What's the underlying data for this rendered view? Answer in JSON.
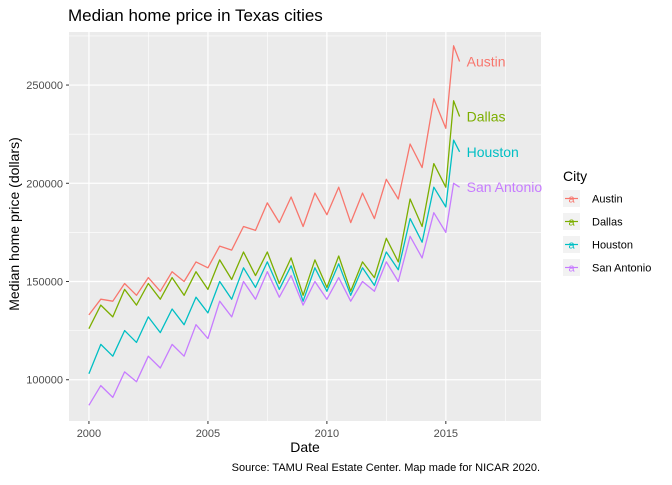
{
  "chart_data": {
    "type": "line",
    "title": "Median home price in Texas cities",
    "xlabel": "Date",
    "ylabel": "Median home price (dollars)",
    "caption": "Source: TAMU Real Estate Center. Map made for NICAR 2020.",
    "xlim": [
      "1999-03-01",
      "2019-01-01"
    ],
    "ylim": [
      79000,
      277000
    ],
    "x_ticks": [
      {
        "value": "2000-01-01",
        "label": "2000"
      },
      {
        "value": "2005-01-01",
        "label": "2005"
      },
      {
        "value": "2010-01-01",
        "label": "2010"
      },
      {
        "value": "2015-01-01",
        "label": "2015"
      }
    ],
    "y_ticks": [
      {
        "value": 100000,
        "label": "100000"
      },
      {
        "value": 150000,
        "label": "150000"
      },
      {
        "value": 200000,
        "label": "200000"
      },
      {
        "value": 250000,
        "label": "250000"
      }
    ],
    "grid": true,
    "legend": {
      "title": "City",
      "position": "right",
      "glyph": "a"
    },
    "series": [
      {
        "name": "Austin",
        "color": "#F8766D",
        "points": [
          [
            "2000-01-01",
            133000
          ],
          [
            "2000-07-01",
            141000
          ],
          [
            "2001-01-01",
            140000
          ],
          [
            "2001-07-01",
            149000
          ],
          [
            "2002-01-01",
            143000
          ],
          [
            "2002-07-01",
            152000
          ],
          [
            "2003-01-01",
            145000
          ],
          [
            "2003-07-01",
            155000
          ],
          [
            "2004-01-01",
            150000
          ],
          [
            "2004-07-01",
            160000
          ],
          [
            "2005-01-01",
            157000
          ],
          [
            "2005-07-01",
            168000
          ],
          [
            "2006-01-01",
            166000
          ],
          [
            "2006-07-01",
            178000
          ],
          [
            "2007-01-01",
            176000
          ],
          [
            "2007-07-01",
            190000
          ],
          [
            "2008-01-01",
            180000
          ],
          [
            "2008-07-01",
            193000
          ],
          [
            "2009-01-01",
            178000
          ],
          [
            "2009-07-01",
            195000
          ],
          [
            "2010-01-01",
            184000
          ],
          [
            "2010-07-01",
            198000
          ],
          [
            "2011-01-01",
            180000
          ],
          [
            "2011-07-01",
            195000
          ],
          [
            "2012-01-01",
            182000
          ],
          [
            "2012-07-01",
            202000
          ],
          [
            "2013-01-01",
            192000
          ],
          [
            "2013-07-01",
            220000
          ],
          [
            "2014-01-01",
            208000
          ],
          [
            "2014-07-01",
            243000
          ],
          [
            "2015-01-01",
            228000
          ],
          [
            "2015-05-01",
            270000
          ],
          [
            "2015-08-01",
            262000
          ]
        ]
      },
      {
        "name": "Dallas",
        "color": "#7CAE00",
        "points": [
          [
            "2000-01-01",
            126000
          ],
          [
            "2000-07-01",
            138000
          ],
          [
            "2001-01-01",
            132000
          ],
          [
            "2001-07-01",
            146000
          ],
          [
            "2002-01-01",
            138000
          ],
          [
            "2002-07-01",
            149000
          ],
          [
            "2003-01-01",
            141000
          ],
          [
            "2003-07-01",
            152000
          ],
          [
            "2004-01-01",
            143000
          ],
          [
            "2004-07-01",
            155000
          ],
          [
            "2005-01-01",
            146000
          ],
          [
            "2005-07-01",
            161000
          ],
          [
            "2006-01-01",
            151000
          ],
          [
            "2006-07-01",
            165000
          ],
          [
            "2007-01-01",
            153000
          ],
          [
            "2007-07-01",
            165000
          ],
          [
            "2008-01-01",
            149000
          ],
          [
            "2008-07-01",
            162000
          ],
          [
            "2009-01-01",
            143000
          ],
          [
            "2009-07-01",
            161000
          ],
          [
            "2010-01-01",
            147000
          ],
          [
            "2010-07-01",
            163000
          ],
          [
            "2011-01-01",
            145000
          ],
          [
            "2011-07-01",
            160000
          ],
          [
            "2012-01-01",
            152000
          ],
          [
            "2012-07-01",
            172000
          ],
          [
            "2013-01-01",
            160000
          ],
          [
            "2013-07-01",
            192000
          ],
          [
            "2014-01-01",
            178000
          ],
          [
            "2014-07-01",
            210000
          ],
          [
            "2015-01-01",
            198000
          ],
          [
            "2015-05-01",
            242000
          ],
          [
            "2015-08-01",
            234000
          ]
        ]
      },
      {
        "name": "Houston",
        "color": "#00BFC4",
        "points": [
          [
            "2000-01-01",
            103000
          ],
          [
            "2000-07-01",
            118000
          ],
          [
            "2001-01-01",
            112000
          ],
          [
            "2001-07-01",
            125000
          ],
          [
            "2002-01-01",
            119000
          ],
          [
            "2002-07-01",
            132000
          ],
          [
            "2003-01-01",
            124000
          ],
          [
            "2003-07-01",
            136000
          ],
          [
            "2004-01-01",
            128000
          ],
          [
            "2004-07-01",
            142000
          ],
          [
            "2005-01-01",
            134000
          ],
          [
            "2005-07-01",
            150000
          ],
          [
            "2006-01-01",
            141000
          ],
          [
            "2006-07-01",
            157000
          ],
          [
            "2007-01-01",
            147000
          ],
          [
            "2007-07-01",
            160000
          ],
          [
            "2008-01-01",
            146000
          ],
          [
            "2008-07-01",
            158000
          ],
          [
            "2009-01-01",
            140000
          ],
          [
            "2009-07-01",
            157000
          ],
          [
            "2010-01-01",
            145000
          ],
          [
            "2010-07-01",
            159000
          ],
          [
            "2011-01-01",
            143000
          ],
          [
            "2011-07-01",
            157000
          ],
          [
            "2012-01-01",
            148000
          ],
          [
            "2012-07-01",
            165000
          ],
          [
            "2013-01-01",
            156000
          ],
          [
            "2013-07-01",
            182000
          ],
          [
            "2014-01-01",
            170000
          ],
          [
            "2014-07-01",
            198000
          ],
          [
            "2015-01-01",
            188000
          ],
          [
            "2015-05-01",
            222000
          ],
          [
            "2015-08-01",
            216000
          ]
        ]
      },
      {
        "name": "San Antonio",
        "color": "#C77CFF",
        "points": [
          [
            "2000-01-01",
            87000
          ],
          [
            "2000-07-01",
            97000
          ],
          [
            "2001-01-01",
            91000
          ],
          [
            "2001-07-01",
            104000
          ],
          [
            "2002-01-01",
            99000
          ],
          [
            "2002-07-01",
            112000
          ],
          [
            "2003-01-01",
            106000
          ],
          [
            "2003-07-01",
            118000
          ],
          [
            "2004-01-01",
            112000
          ],
          [
            "2004-07-01",
            128000
          ],
          [
            "2005-01-01",
            121000
          ],
          [
            "2005-07-01",
            140000
          ],
          [
            "2006-01-01",
            132000
          ],
          [
            "2006-07-01",
            150000
          ],
          [
            "2007-01-01",
            141000
          ],
          [
            "2007-07-01",
            155000
          ],
          [
            "2008-01-01",
            142000
          ],
          [
            "2008-07-01",
            153000
          ],
          [
            "2009-01-01",
            138000
          ],
          [
            "2009-07-01",
            150000
          ],
          [
            "2010-01-01",
            141000
          ],
          [
            "2010-07-01",
            152000
          ],
          [
            "2011-01-01",
            140000
          ],
          [
            "2011-07-01",
            150000
          ],
          [
            "2012-01-01",
            145000
          ],
          [
            "2012-07-01",
            160000
          ],
          [
            "2013-01-01",
            150000
          ],
          [
            "2013-07-01",
            173000
          ],
          [
            "2014-01-01",
            162000
          ],
          [
            "2014-07-01",
            185000
          ],
          [
            "2015-01-01",
            175000
          ],
          [
            "2015-05-01",
            200000
          ],
          [
            "2015-08-01",
            198000
          ]
        ]
      }
    ]
  }
}
